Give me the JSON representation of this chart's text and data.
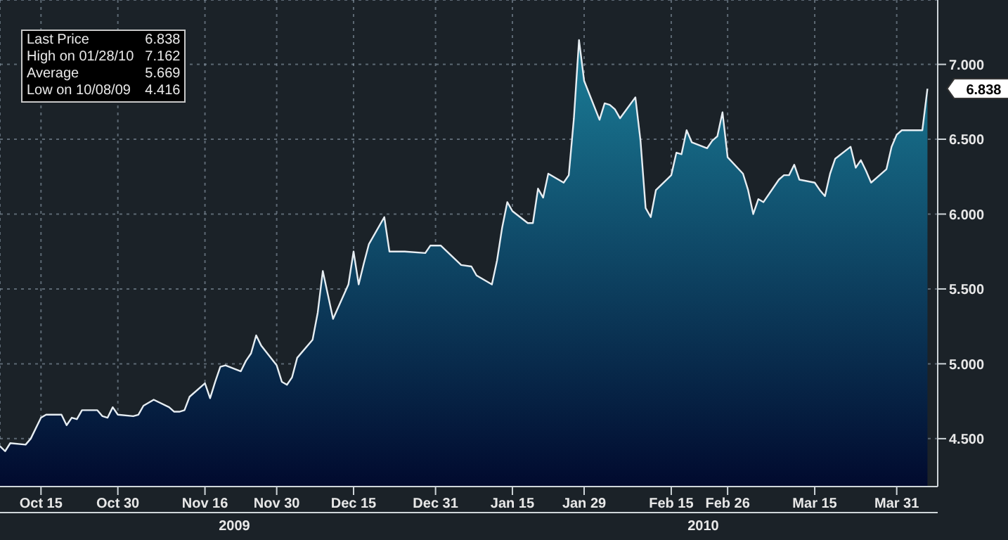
{
  "chart_data": {
    "type": "area",
    "x": [
      "2009-10-07",
      "2009-10-08",
      "2009-10-09",
      "2009-10-12",
      "2009-10-13",
      "2009-10-15",
      "2009-10-16",
      "2009-10-19",
      "2009-10-20",
      "2009-10-21",
      "2009-10-22",
      "2009-10-23",
      "2009-10-26",
      "2009-10-27",
      "2009-10-28",
      "2009-10-29",
      "2009-10-30",
      "2009-11-02",
      "2009-11-03",
      "2009-11-04",
      "2009-11-06",
      "2009-11-09",
      "2009-11-10",
      "2009-11-11",
      "2009-11-12",
      "2009-11-13",
      "2009-11-16",
      "2009-11-17",
      "2009-11-18",
      "2009-11-19",
      "2009-11-20",
      "2009-11-23",
      "2009-11-24",
      "2009-11-25",
      "2009-11-26",
      "2009-11-27",
      "2009-11-30",
      "2009-12-01",
      "2009-12-02",
      "2009-12-03",
      "2009-12-04",
      "2009-12-07",
      "2009-12-08",
      "2009-12-09",
      "2009-12-10",
      "2009-12-11",
      "2009-12-14",
      "2009-12-15",
      "2009-12-16",
      "2009-12-17",
      "2009-12-18",
      "2009-12-21",
      "2009-12-22",
      "2009-12-23",
      "2009-12-25",
      "2009-12-29",
      "2009-12-30",
      "2010-01-01",
      "2010-01-05",
      "2010-01-07",
      "2010-01-08",
      "2010-01-11",
      "2010-01-12",
      "2010-01-13",
      "2010-01-14",
      "2010-01-15",
      "2010-01-18",
      "2010-01-19",
      "2010-01-20",
      "2010-01-21",
      "2010-01-22",
      "2010-01-25",
      "2010-01-26",
      "2010-01-27",
      "2010-01-28",
      "2010-01-29",
      "2010-02-01",
      "2010-02-02",
      "2010-02-03",
      "2010-02-04",
      "2010-02-05",
      "2010-02-08",
      "2010-02-09",
      "2010-02-10",
      "2010-02-11",
      "2010-02-12",
      "2010-02-15",
      "2010-02-16",
      "2010-02-17",
      "2010-02-18",
      "2010-02-19",
      "2010-02-22",
      "2010-02-23",
      "2010-02-24",
      "2010-02-25",
      "2010-02-26",
      "2010-03-01",
      "2010-03-02",
      "2010-03-03",
      "2010-03-04",
      "2010-03-05",
      "2010-03-08",
      "2010-03-09",
      "2010-03-10",
      "2010-03-11",
      "2010-03-12",
      "2010-03-15",
      "2010-03-16",
      "2010-03-17",
      "2010-03-18",
      "2010-03-19",
      "2010-03-22",
      "2010-03-23",
      "2010-03-24",
      "2010-03-25",
      "2010-03-26",
      "2010-03-29",
      "2010-03-30",
      "2010-03-31",
      "2010-04-01",
      "2010-04-05",
      "2010-04-06"
    ],
    "series": [
      {
        "color": "#1b7f99",
        "values": [
          4.45,
          4.416,
          4.47,
          4.46,
          4.5,
          4.64,
          4.66,
          4.66,
          4.59,
          4.64,
          4.63,
          4.69,
          4.69,
          4.65,
          4.64,
          4.71,
          4.66,
          4.65,
          4.66,
          4.72,
          4.76,
          4.71,
          4.68,
          4.68,
          4.69,
          4.78,
          4.87,
          4.77,
          4.88,
          4.98,
          4.99,
          4.95,
          5.02,
          5.07,
          5.19,
          5.12,
          4.99,
          4.88,
          4.86,
          4.91,
          5.04,
          5.16,
          5.34,
          5.62,
          5.46,
          5.3,
          5.53,
          5.75,
          5.53,
          5.67,
          5.8,
          5.98,
          5.75,
          5.75,
          5.75,
          5.74,
          5.79,
          5.79,
          5.66,
          5.65,
          5.59,
          5.53,
          5.69,
          5.91,
          6.08,
          6.02,
          5.94,
          5.94,
          6.17,
          6.11,
          6.27,
          6.21,
          6.26,
          6.64,
          7.162,
          6.89,
          6.63,
          6.74,
          6.73,
          6.7,
          6.64,
          6.78,
          6.49,
          6.04,
          5.98,
          6.16,
          6.26,
          6.41,
          6.4,
          6.56,
          6.48,
          6.44,
          6.49,
          6.52,
          6.68,
          6.38,
          6.27,
          6.16,
          6,
          6.1,
          6.08,
          6.23,
          6.26,
          6.26,
          6.33,
          6.23,
          6.21,
          6.16,
          6.12,
          6.27,
          6.37,
          6.45,
          6.31,
          6.36,
          6.29,
          6.21,
          6.3,
          6.45,
          6.53,
          6.56,
          6.56,
          6.838
        ]
      }
    ],
    "xlim": [
      "2009-10-07",
      "2010-04-08"
    ],
    "xticks": [
      {
        "value": "2009-10-15",
        "label": "Oct 15"
      },
      {
        "value": "2009-10-30",
        "label": "Oct 30"
      },
      {
        "value": "2009-11-16",
        "label": "Nov 16"
      },
      {
        "value": "2009-11-30",
        "label": "Nov 30"
      },
      {
        "value": "2009-12-15",
        "label": "Dec 15"
      },
      {
        "value": "2009-12-31",
        "label": "Dec 31"
      },
      {
        "value": "2010-01-15",
        "label": "Jan 15"
      },
      {
        "value": "2010-01-29",
        "label": "Jan 29"
      },
      {
        "value": "2010-02-15",
        "label": "Feb 15"
      },
      {
        "value": "2010-02-26",
        "label": "Feb 26"
      },
      {
        "value": "2010-03-15",
        "label": "Mar 15"
      },
      {
        "value": "2010-03-31",
        "label": "Mar 31"
      }
    ],
    "ylim": [
      4.18,
      7.43
    ],
    "yticks": [
      {
        "value": 4.5,
        "label": "4.500"
      },
      {
        "value": 5,
        "label": "5.000"
      },
      {
        "value": 5.5,
        "label": "5.500"
      },
      {
        "value": 6,
        "label": "6.000"
      },
      {
        "value": 6.5,
        "label": "6.500"
      },
      {
        "value": 7,
        "label": "7.000"
      }
    ],
    "grid": true,
    "annotations": [
      "Last Price 6.838",
      "High on 01/28/10 7.162",
      "Average 5.669",
      "Low on 10/08/09 4.416",
      {
        "text": "6.838",
        "x": "2010-04-06",
        "y": 6.838
      },
      "2009",
      "2010"
    ]
  }
}
